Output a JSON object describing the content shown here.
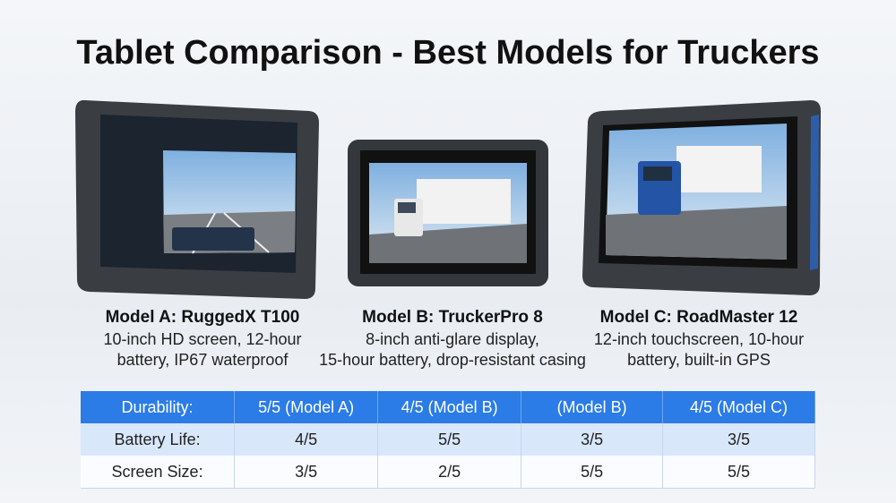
{
  "title": "Tablet Comparison - Best Models for Truckers",
  "models": [
    {
      "name": "Model A: RuggedX T100",
      "description": [
        "10-inch HD screen, 12-hour",
        "battery, IP67 waterproof"
      ]
    },
    {
      "name": "Model B: TruckerPro 8",
      "description": [
        "8-inch anti-glare display,",
        "15-hour battery, drop-resistant casing"
      ]
    },
    {
      "name": "Model C: RoadMaster 12",
      "description": [
        "12-inch touchscreen, 10-hour",
        "battery, built-in GPS"
      ]
    }
  ],
  "table": {
    "header": [
      "Durability:",
      "5/5 (Model A)",
      "4/5 (Model B)",
      "(Model B)",
      "4/5 (Model C)"
    ],
    "rows": [
      [
        "Battery Life:",
        "4/5",
        "5/5",
        "3/5",
        "3/5"
      ],
      [
        "Screen Size:",
        "3/5",
        "2/5",
        "5/5",
        "5/5"
      ]
    ]
  }
}
